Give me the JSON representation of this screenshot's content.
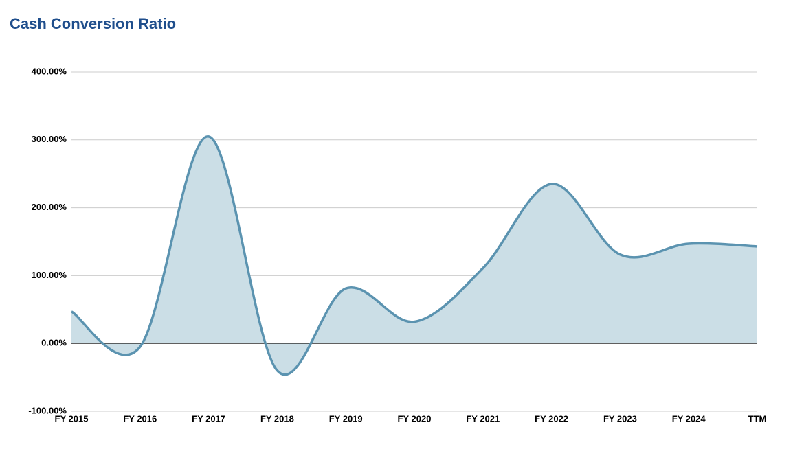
{
  "chart_data": {
    "type": "area",
    "title": "Cash Conversion Ratio",
    "categories": [
      "FY 2015",
      "FY 2016",
      "FY 2017",
      "FY 2018",
      "FY 2019",
      "FY 2020",
      "FY 2021",
      "FY 2022",
      "FY 2023",
      "FY 2024",
      "TTM"
    ],
    "values": [
      47,
      -5,
      305,
      -40,
      81,
      32,
      111,
      235,
      131,
      147,
      143
    ],
    "color": "#5b93b0",
    "fill": "#cbdee6",
    "ylim": [
      -100,
      400
    ],
    "yticks": [
      {
        "value": -100,
        "label": "-100.00%"
      },
      {
        "value": 0,
        "label": "0.00%"
      },
      {
        "value": 100,
        "label": "100.00%"
      },
      {
        "value": 200,
        "label": "200.00%"
      },
      {
        "value": 300,
        "label": "300.00%"
      },
      {
        "value": 400,
        "label": "400.00%"
      }
    ],
    "grid": true
  }
}
